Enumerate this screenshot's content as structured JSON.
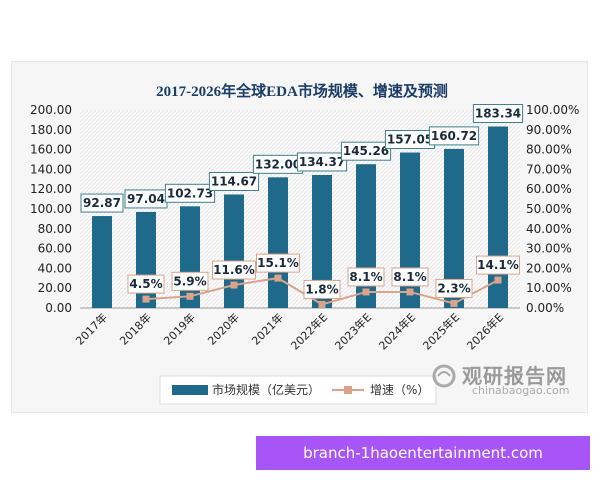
{
  "chart_data": {
    "type": "bar",
    "title": "2017-2026年全球EDA市场规模、增速及预测",
    "categories": [
      "2017年",
      "2018年",
      "2019年",
      "2020年",
      "2021年",
      "2022年E",
      "2023年E",
      "2024年E",
      "2025年E",
      "2026年E"
    ],
    "series": [
      {
        "name": "市场规模（亿美元）",
        "type": "bar",
        "axis": "left",
        "values": [
          92.87,
          97.04,
          102.73,
          114.67,
          132.0,
          134.37,
          145.26,
          157.05,
          160.72,
          183.34
        ],
        "labels": [
          "92.87",
          "97.04",
          "102.73",
          "114.67",
          "132.00",
          "134.37",
          "145.26",
          "157.05",
          "160.72",
          "183.34"
        ],
        "color": "#1f6a8a"
      },
      {
        "name": "增速（%）",
        "type": "line",
        "axis": "right",
        "values": [
          null,
          4.5,
          5.9,
          11.6,
          15.1,
          1.8,
          8.1,
          8.1,
          2.3,
          14.1
        ],
        "labels": [
          "",
          "4.5%",
          "5.9%",
          "11.6%",
          "15.1%",
          "1.8%",
          "8.1%",
          "8.1%",
          "2.3%",
          "14.1%"
        ],
        "color": "#d9a38c"
      }
    ],
    "y_left": {
      "range": [
        0,
        200
      ],
      "ticks": [
        "0.00",
        "20.00",
        "40.00",
        "60.00",
        "80.00",
        "100.00",
        "120.00",
        "140.00",
        "160.00",
        "180.00",
        "200.00"
      ]
    },
    "y_right": {
      "range": [
        0,
        100
      ],
      "ticks": [
        "0.00%",
        "10.00%",
        "20.00%",
        "30.00%",
        "40.00%",
        "50.00%",
        "60.00%",
        "70.00%",
        "80.00%",
        "90.00%",
        "100.00%"
      ]
    },
    "legend": "bottom",
    "grid": false
  },
  "watermark": {
    "title": "观研报告网",
    "url": "chinabaogao.com"
  },
  "banner": {
    "text": "branch-1haoentertainment.com"
  }
}
